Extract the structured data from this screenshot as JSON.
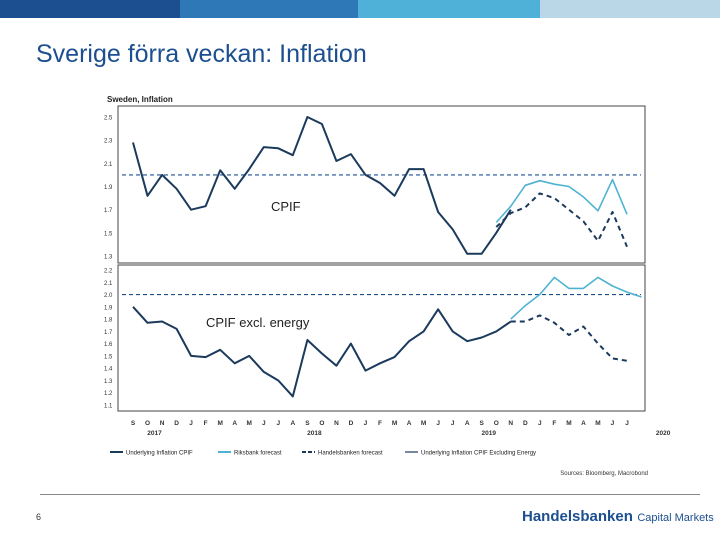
{
  "slide": {
    "title": "Sverige förra veckan:  Inflation",
    "page_number": "6",
    "brand_main": "Handelsbanken",
    "brand_sub": "Capital Markets",
    "top_bar_colors": [
      "#1c4f8f",
      "#2f78b8",
      "#4fb1d8",
      "#b9d7e6"
    ]
  },
  "colors": {
    "navy": "#1b3a5c",
    "light_blue": "#4eb3d3",
    "target": "#1b4f8f",
    "axis": "#333333"
  },
  "chart_data": {
    "type": "line",
    "title": "Sweden, Inflation",
    "source": "Sources: Bloomberg, Macrobond",
    "months": [
      "S",
      "O",
      "N",
      "D",
      "J",
      "F",
      "M",
      "A",
      "M",
      "J",
      "J",
      "A",
      "S",
      "O",
      "N",
      "D",
      "J",
      "F",
      "M",
      "A",
      "M",
      "J",
      "J",
      "A",
      "S",
      "O",
      "N",
      "D",
      "J",
      "F",
      "M",
      "A",
      "M",
      "J",
      "J"
    ],
    "years": [
      {
        "label": "2017",
        "index": 1
      },
      {
        "label": "2018",
        "index": 12
      },
      {
        "label": "2019",
        "index": 24
      },
      {
        "label": "2020",
        "index": 36
      }
    ],
    "legend": [
      {
        "label": "Underlying Inflation CPIF",
        "style": "navy-solid"
      },
      {
        "label": "Riksbank forecast",
        "style": "light-solid"
      },
      {
        "label": "Handelsbanken forecast",
        "style": "navy-dashed"
      },
      {
        "label": "Underlying Inflation CPIF Excluding Energy",
        "style": "navy-thin"
      }
    ],
    "panels": [
      {
        "name": "CPIF",
        "label": "CPIF",
        "ylim": [
          1.3,
          2.5
        ],
        "yticks": [
          "2.5",
          "2.3",
          "2.1",
          "1.9",
          "1.7",
          "1.5",
          "1.3"
        ],
        "target": 2.0,
        "series": [
          {
            "name": "Underlying Inflation CPIF",
            "x_start": 0,
            "values": [
              2.28,
              1.82,
              2.0,
              1.88,
              1.7,
              1.73,
              2.04,
              1.88,
              2.05,
              2.24,
              2.23,
              2.17,
              2.5,
              2.44,
              2.12,
              2.18,
              2.0,
              1.93,
              1.82,
              2.05,
              2.05,
              1.68,
              1.53,
              1.32,
              1.32,
              1.5,
              1.7
            ]
          },
          {
            "name": "Riksbank forecast",
            "x_start": 25,
            "values": [
              1.59,
              1.73,
              1.91,
              1.95,
              1.92,
              1.9,
              1.81,
              1.69,
              1.96,
              1.66
            ]
          },
          {
            "name": "Handelsbanken forecast",
            "x_start": 25,
            "values": [
              1.55,
              1.67,
              1.72,
              1.84,
              1.8,
              1.7,
              1.6,
              1.43,
              1.68,
              1.38
            ]
          }
        ]
      },
      {
        "name": "CPIF excl. energy",
        "label": "CPIF excl. energy",
        "ylim": [
          1.1,
          2.2
        ],
        "yticks": [
          "2.2",
          "2.1",
          "2.0",
          "1.9",
          "1.8",
          "1.7",
          "1.6",
          "1.5",
          "1.4",
          "1.3",
          "1.2",
          "1.1"
        ],
        "target": 2.0,
        "series": [
          {
            "name": "Underlying Inflation CPIF Excluding Energy",
            "x_start": 0,
            "values": [
              1.9,
              1.77,
              1.78,
              1.72,
              1.5,
              1.49,
              1.55,
              1.44,
              1.5,
              1.37,
              1.3,
              1.17,
              1.63,
              1.52,
              1.42,
              1.6,
              1.38,
              1.44,
              1.49,
              1.62,
              1.7,
              1.88,
              1.7,
              1.62,
              1.65,
              1.7,
              1.78
            ]
          },
          {
            "name": "Riksbank forecast",
            "x_start": 26,
            "values": [
              1.8,
              1.91,
              2.0,
              2.14,
              2.05,
              2.05,
              2.14,
              2.07,
              2.02,
              1.98
            ]
          },
          {
            "name": "Handelsbanken forecast",
            "x_start": 26,
            "values": [
              1.78,
              1.78,
              1.83,
              1.77,
              1.67,
              1.74,
              1.6,
              1.48,
              1.46
            ]
          }
        ]
      }
    ]
  }
}
